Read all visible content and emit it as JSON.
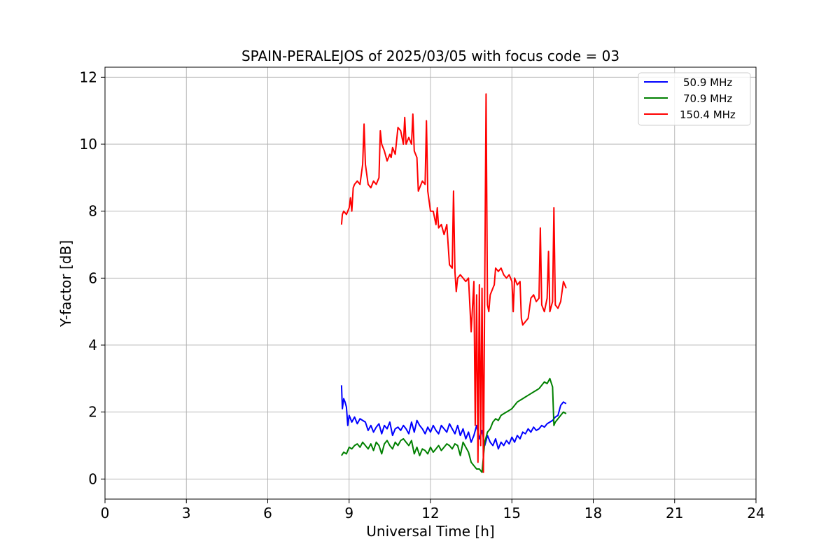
{
  "chart_data": {
    "type": "line",
    "title": "SPAIN-PERALEJOS of 2025/03/05 with focus code = 03",
    "xlabel": "Universal Time [h]",
    "ylabel": "Y-factor [dB]",
    "xlim": [
      0,
      24
    ],
    "ylim": [
      -0.6,
      12.3
    ],
    "xticks": [
      0,
      3,
      6,
      9,
      12,
      15,
      18,
      21,
      24
    ],
    "yticks": [
      0,
      2,
      4,
      6,
      8,
      10,
      12
    ],
    "grid": true,
    "legend_position": "top-right",
    "series": [
      {
        "name": "50.9 MHz",
        "color": "#0000ff",
        "x": [
          8.72,
          8.75,
          8.8,
          8.85,
          8.9,
          8.95,
          9.0,
          9.1,
          9.2,
          9.3,
          9.4,
          9.5,
          9.6,
          9.7,
          9.8,
          9.9,
          10.0,
          10.1,
          10.2,
          10.3,
          10.4,
          10.5,
          10.6,
          10.7,
          10.8,
          10.9,
          11.0,
          11.1,
          11.2,
          11.3,
          11.4,
          11.5,
          11.6,
          11.7,
          11.8,
          11.9,
          12.0,
          12.1,
          12.2,
          12.3,
          12.4,
          12.5,
          12.6,
          12.7,
          12.8,
          12.9,
          13.0,
          13.1,
          13.2,
          13.3,
          13.4,
          13.5,
          13.6,
          13.7,
          13.8,
          13.9,
          14.0,
          14.1,
          14.2,
          14.3,
          14.4,
          14.5,
          14.6,
          14.7,
          14.8,
          14.9,
          15.0,
          15.1,
          15.2,
          15.3,
          15.4,
          15.5,
          15.6,
          15.7,
          15.8,
          15.9,
          16.0,
          16.1,
          16.2,
          16.3,
          16.4,
          16.5,
          16.6,
          16.7,
          16.8,
          16.9,
          17.0
        ],
        "y": [
          2.8,
          2.1,
          2.4,
          2.3,
          2.15,
          1.6,
          1.9,
          1.7,
          1.85,
          1.65,
          1.8,
          1.75,
          1.7,
          1.45,
          1.6,
          1.4,
          1.55,
          1.65,
          1.35,
          1.6,
          1.5,
          1.7,
          1.3,
          1.5,
          1.55,
          1.45,
          1.6,
          1.5,
          1.35,
          1.7,
          1.4,
          1.75,
          1.6,
          1.5,
          1.35,
          1.55,
          1.4,
          1.6,
          1.45,
          1.35,
          1.6,
          1.5,
          1.4,
          1.65,
          1.5,
          1.35,
          1.6,
          1.3,
          1.5,
          1.2,
          1.4,
          1.1,
          1.3,
          1.6,
          1.2,
          1.45,
          1.0,
          1.3,
          1.1,
          1.0,
          1.2,
          0.9,
          1.1,
          1.0,
          1.15,
          1.05,
          1.25,
          1.1,
          1.3,
          1.2,
          1.4,
          1.35,
          1.5,
          1.4,
          1.55,
          1.45,
          1.5,
          1.6,
          1.55,
          1.65,
          1.7,
          1.75,
          1.85,
          1.9,
          2.2,
          2.3,
          2.25
        ]
      },
      {
        "name": "70.9 MHz",
        "color": "#008000",
        "x": [
          8.72,
          8.8,
          8.9,
          9.0,
          9.1,
          9.2,
          9.3,
          9.4,
          9.5,
          9.6,
          9.7,
          9.8,
          9.9,
          10.0,
          10.1,
          10.2,
          10.3,
          10.4,
          10.5,
          10.6,
          10.7,
          10.8,
          10.9,
          11.0,
          11.1,
          11.2,
          11.3,
          11.4,
          11.5,
          11.6,
          11.7,
          11.8,
          11.9,
          12.0,
          12.1,
          12.2,
          12.3,
          12.4,
          12.5,
          12.6,
          12.7,
          12.8,
          12.9,
          13.0,
          13.1,
          13.2,
          13.3,
          13.4,
          13.5,
          13.6,
          13.7,
          13.8,
          13.9,
          14.0,
          14.1,
          14.2,
          14.3,
          14.4,
          14.5,
          14.6,
          14.7,
          14.8,
          14.9,
          15.0,
          15.1,
          15.2,
          15.3,
          15.4,
          15.5,
          15.6,
          15.7,
          15.8,
          15.9,
          16.0,
          16.1,
          16.2,
          16.3,
          16.4,
          16.5,
          16.55,
          16.6,
          16.7,
          16.8,
          16.9,
          17.0
        ],
        "y": [
          0.7,
          0.8,
          0.75,
          0.95,
          0.9,
          1.0,
          1.05,
          0.95,
          1.1,
          1.0,
          0.9,
          1.05,
          0.85,
          1.1,
          1.0,
          0.75,
          1.05,
          1.15,
          1.0,
          0.9,
          1.1,
          1.0,
          1.15,
          1.2,
          1.1,
          1.0,
          1.15,
          0.75,
          0.95,
          0.7,
          0.9,
          0.85,
          0.75,
          0.95,
          0.8,
          0.9,
          1.0,
          0.85,
          0.95,
          1.05,
          1.0,
          0.9,
          1.05,
          1.0,
          0.7,
          1.1,
          0.95,
          0.8,
          0.5,
          0.4,
          0.3,
          0.3,
          0.2,
          1.1,
          1.4,
          1.5,
          1.7,
          1.8,
          1.75,
          1.9,
          1.95,
          2.0,
          2.05,
          2.1,
          2.2,
          2.3,
          2.35,
          2.4,
          2.45,
          2.5,
          2.55,
          2.6,
          2.65,
          2.7,
          2.8,
          2.9,
          2.85,
          3.0,
          2.75,
          1.6,
          1.7,
          1.8,
          1.9,
          2.0,
          1.95
        ]
      },
      {
        "name": "150.4 MHz",
        "color": "#ff0000",
        "x": [
          8.72,
          8.75,
          8.8,
          8.9,
          9.0,
          9.05,
          9.1,
          9.15,
          9.2,
          9.3,
          9.4,
          9.5,
          9.55,
          9.6,
          9.7,
          9.8,
          9.9,
          10.0,
          10.1,
          10.15,
          10.2,
          10.3,
          10.4,
          10.5,
          10.55,
          10.6,
          10.7,
          10.8,
          10.9,
          11.0,
          11.05,
          11.1,
          11.2,
          11.3,
          11.35,
          11.4,
          11.5,
          11.55,
          11.6,
          11.7,
          11.8,
          11.85,
          11.9,
          12.0,
          12.1,
          12.2,
          12.25,
          12.3,
          12.4,
          12.5,
          12.6,
          12.7,
          12.8,
          12.85,
          12.9,
          12.95,
          13.0,
          13.1,
          13.2,
          13.3,
          13.4,
          13.5,
          13.6,
          13.65,
          13.7,
          13.75,
          13.8,
          13.85,
          13.9,
          13.95,
          14.0,
          14.05,
          14.1,
          14.15,
          14.2,
          14.3,
          14.35,
          14.4,
          14.5,
          14.6,
          14.7,
          14.8,
          14.9,
          15.0,
          15.05,
          15.1,
          15.2,
          15.3,
          15.35,
          15.4,
          15.5,
          15.6,
          15.7,
          15.8,
          15.9,
          16.0,
          16.05,
          16.1,
          16.2,
          16.3,
          16.35,
          16.4,
          16.5,
          16.55,
          16.6,
          16.7,
          16.8,
          16.9,
          17.0
        ],
        "y": [
          7.6,
          7.9,
          8.0,
          7.9,
          8.1,
          8.4,
          8.0,
          8.7,
          8.8,
          8.9,
          8.8,
          9.4,
          10.6,
          9.4,
          8.8,
          8.7,
          8.9,
          8.8,
          9.0,
          10.4,
          10.0,
          9.8,
          9.5,
          9.7,
          9.6,
          9.9,
          9.7,
          10.5,
          10.4,
          10.0,
          10.8,
          10.0,
          10.2,
          10.0,
          10.9,
          9.8,
          9.6,
          8.6,
          8.7,
          8.9,
          8.8,
          10.7,
          8.6,
          8.0,
          8.0,
          7.6,
          8.1,
          7.5,
          7.6,
          7.3,
          7.6,
          6.4,
          6.3,
          8.6,
          6.2,
          5.6,
          6.0,
          6.1,
          6.0,
          5.9,
          6.0,
          4.4,
          5.9,
          1.6,
          5.5,
          0.5,
          5.8,
          1.0,
          5.7,
          0.2,
          5.8,
          11.5,
          5.2,
          5.0,
          5.5,
          5.7,
          5.8,
          6.3,
          6.2,
          6.3,
          6.1,
          6.0,
          6.1,
          5.9,
          5.0,
          6.0,
          5.8,
          5.9,
          4.8,
          4.6,
          4.7,
          4.8,
          5.4,
          5.5,
          5.3,
          5.4,
          7.5,
          5.2,
          5.0,
          5.4,
          6.8,
          5.0,
          5.3,
          8.1,
          5.2,
          5.1,
          5.3,
          5.9,
          5.7
        ]
      }
    ]
  }
}
